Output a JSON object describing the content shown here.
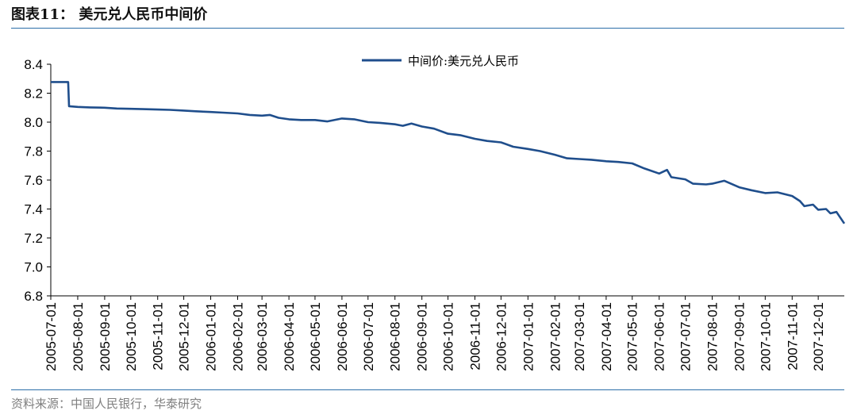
{
  "header": {
    "title": "图表11： 美元兑人民币中间价"
  },
  "footer": {
    "source": "资料来源：中国人民银行，华泰研究"
  },
  "colors": {
    "series": "#1f4e8c",
    "rule": "#2c6ea8",
    "axis": "#000000"
  },
  "chart_data": {
    "type": "line",
    "xlabel": "",
    "ylabel": "",
    "ylim": [
      6.8,
      8.4
    ],
    "yticks": [
      6.8,
      7.0,
      7.2,
      7.4,
      7.6,
      7.8,
      8.0,
      8.2,
      8.4
    ],
    "ytick_labels": [
      "6.8",
      "7.0",
      "7.2",
      "7.4",
      "7.6",
      "7.8",
      "8.0",
      "8.2",
      "8.4"
    ],
    "xlim": [
      "2005-07-01",
      "2007-12-31"
    ],
    "xtick_labels": [
      "2005-07-01",
      "2005-08-01",
      "2005-09-01",
      "2005-10-01",
      "2005-11-01",
      "2005-12-01",
      "2006-01-01",
      "2006-02-01",
      "2006-03-01",
      "2006-04-01",
      "2006-05-01",
      "2006-06-01",
      "2006-07-01",
      "2006-08-01",
      "2006-09-01",
      "2006-10-01",
      "2006-11-01",
      "2006-12-01",
      "2007-01-01",
      "2007-02-01",
      "2007-03-01",
      "2007-04-01",
      "2007-05-01",
      "2007-06-01",
      "2007-07-01",
      "2007-08-01",
      "2007-09-01",
      "2007-10-01",
      "2007-11-01",
      "2007-12-01"
    ],
    "grid": false,
    "legend_position": "top-center",
    "series": [
      {
        "name": "中间价:美元兑人民币",
        "points": [
          [
            "2005-07-01",
            8.277
          ],
          [
            "2005-07-21",
            8.277
          ],
          [
            "2005-07-22",
            8.11
          ],
          [
            "2005-08-01",
            8.105
          ],
          [
            "2005-08-15",
            8.102
          ],
          [
            "2005-09-01",
            8.1
          ],
          [
            "2005-09-15",
            8.094
          ],
          [
            "2005-10-01",
            8.092
          ],
          [
            "2005-10-15",
            8.09
          ],
          [
            "2005-11-01",
            8.087
          ],
          [
            "2005-11-15",
            8.085
          ],
          [
            "2005-12-01",
            8.08
          ],
          [
            "2005-12-15",
            8.075
          ],
          [
            "2006-01-01",
            8.07
          ],
          [
            "2006-01-15",
            8.066
          ],
          [
            "2006-02-01",
            8.06
          ],
          [
            "2006-02-15",
            8.05
          ],
          [
            "2006-03-01",
            8.045
          ],
          [
            "2006-03-10",
            8.05
          ],
          [
            "2006-03-20",
            8.03
          ],
          [
            "2006-04-01",
            8.02
          ],
          [
            "2006-04-15",
            8.015
          ],
          [
            "2006-05-01",
            8.015
          ],
          [
            "2006-05-15",
            8.005
          ],
          [
            "2006-06-01",
            8.025
          ],
          [
            "2006-06-15",
            8.02
          ],
          [
            "2006-07-01",
            8.0
          ],
          [
            "2006-07-15",
            7.995
          ],
          [
            "2006-08-01",
            7.985
          ],
          [
            "2006-08-10",
            7.975
          ],
          [
            "2006-08-20",
            7.99
          ],
          [
            "2006-09-01",
            7.97
          ],
          [
            "2006-09-15",
            7.955
          ],
          [
            "2006-10-01",
            7.92
          ],
          [
            "2006-10-15",
            7.91
          ],
          [
            "2006-11-01",
            7.885
          ],
          [
            "2006-11-15",
            7.87
          ],
          [
            "2006-12-01",
            7.86
          ],
          [
            "2006-12-15",
            7.83
          ],
          [
            "2007-01-01",
            7.815
          ],
          [
            "2007-01-15",
            7.8
          ],
          [
            "2007-02-01",
            7.775
          ],
          [
            "2007-02-15",
            7.75
          ],
          [
            "2007-03-01",
            7.745
          ],
          [
            "2007-03-15",
            7.74
          ],
          [
            "2007-04-01",
            7.73
          ],
          [
            "2007-04-15",
            7.725
          ],
          [
            "2007-05-01",
            7.715
          ],
          [
            "2007-05-15",
            7.68
          ],
          [
            "2007-06-01",
            7.645
          ],
          [
            "2007-06-10",
            7.67
          ],
          [
            "2007-06-15",
            7.62
          ],
          [
            "2007-07-01",
            7.605
          ],
          [
            "2007-07-10",
            7.575
          ],
          [
            "2007-07-25",
            7.57
          ],
          [
            "2007-08-01",
            7.575
          ],
          [
            "2007-08-15",
            7.595
          ],
          [
            "2007-09-01",
            7.55
          ],
          [
            "2007-09-15",
            7.53
          ],
          [
            "2007-10-01",
            7.51
          ],
          [
            "2007-10-15",
            7.515
          ],
          [
            "2007-11-01",
            7.49
          ],
          [
            "2007-11-10",
            7.455
          ],
          [
            "2007-11-15",
            7.42
          ],
          [
            "2007-11-25",
            7.43
          ],
          [
            "2007-12-01",
            7.395
          ],
          [
            "2007-12-10",
            7.4
          ],
          [
            "2007-12-15",
            7.37
          ],
          [
            "2007-12-22",
            7.38
          ],
          [
            "2007-12-31",
            7.3
          ]
        ]
      }
    ]
  }
}
